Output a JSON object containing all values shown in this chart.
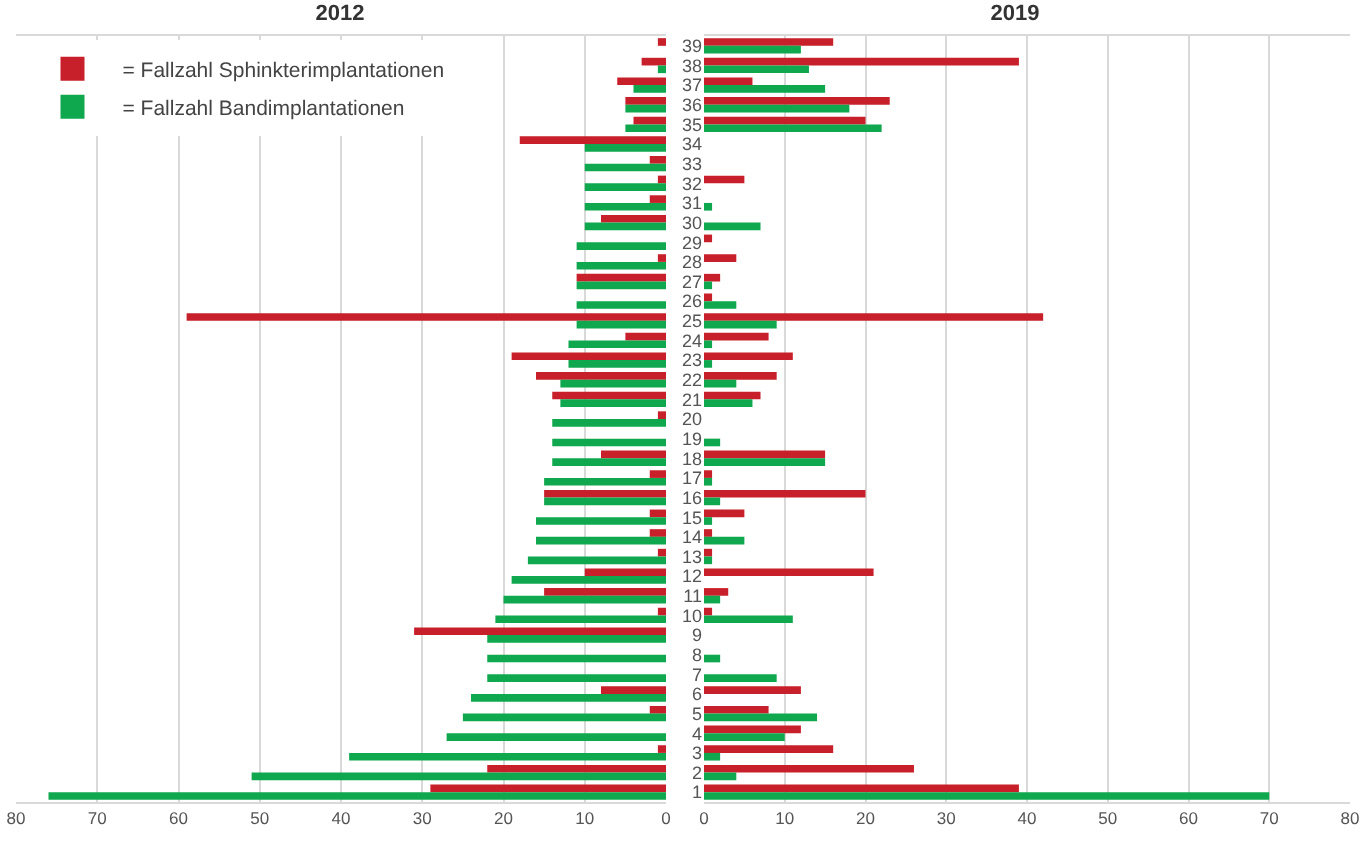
{
  "chart_data": [
    {
      "type": "bar",
      "title": "2012",
      "orientation": "horizontal",
      "categories": [
        "39",
        "38",
        "37",
        "36",
        "35",
        "34",
        "33",
        "32",
        "31",
        "30",
        "29",
        "28",
        "27",
        "26",
        "25",
        "24",
        "23",
        "22",
        "21",
        "20",
        "19",
        "18",
        "17",
        "16",
        "15",
        "14",
        "13",
        "12",
        "11",
        "10",
        "9",
        "8",
        "7",
        "6",
        "5",
        "4",
        "3",
        "2",
        "1"
      ],
      "series": [
        {
          "name": "= Fallzahl Sphinkterimplantationen",
          "color": "#c8202a",
          "values": [
            1,
            3,
            6,
            5,
            4,
            18,
            2,
            1,
            2,
            8,
            0,
            1,
            11,
            0,
            59,
            5,
            19,
            16,
            14,
            1,
            0,
            8,
            2,
            15,
            2,
            2,
            1,
            10,
            15,
            1,
            31,
            0,
            0,
            8,
            2,
            0,
            1,
            22,
            29
          ]
        },
        {
          "name": "= Fallzahl Bandimplantationen",
          "color": "#10a84f",
          "values": [
            0,
            1,
            4,
            5,
            5,
            10,
            10,
            10,
            10,
            10,
            11,
            11,
            11,
            11,
            11,
            12,
            12,
            13,
            13,
            14,
            14,
            14,
            15,
            15,
            16,
            16,
            17,
            19,
            20,
            21,
            22,
            22,
            22,
            24,
            25,
            27,
            39,
            51,
            76
          ]
        }
      ],
      "xlim": [
        80,
        0
      ],
      "xticks": [
        0,
        10,
        20,
        30,
        40,
        50,
        60,
        70,
        80
      ],
      "grid": "x",
      "legend": "top left",
      "tick_labels": "x"
    },
    {
      "type": "bar",
      "title": "2019",
      "orientation": "horizontal",
      "categories": [
        "39",
        "38",
        "37",
        "36",
        "35",
        "34",
        "33",
        "32",
        "31",
        "30",
        "29",
        "28",
        "27",
        "26",
        "25",
        "24",
        "23",
        "22",
        "21",
        "20",
        "19",
        "18",
        "17",
        "16",
        "15",
        "14",
        "13",
        "12",
        "11",
        "10",
        "9",
        "8",
        "7",
        "6",
        "5",
        "4",
        "3",
        "2",
        "1"
      ],
      "series": [
        {
          "color": "#c8202a",
          "values": [
            16,
            39,
            6,
            23,
            20,
            0,
            0,
            5,
            0,
            0,
            1,
            4,
            2,
            1,
            42,
            8,
            11,
            9,
            7,
            0,
            0,
            15,
            1,
            20,
            5,
            1,
            1,
            21,
            3,
            1,
            0,
            0,
            0,
            12,
            8,
            12,
            16,
            26,
            39
          ]
        },
        {
          "color": "#10a84f",
          "values": [
            12,
            13,
            15,
            18,
            22,
            0,
            0,
            0,
            1,
            7,
            0,
            0,
            1,
            4,
            9,
            1,
            1,
            4,
            6,
            0,
            2,
            15,
            1,
            2,
            1,
            5,
            1,
            0,
            2,
            11,
            0,
            2,
            9,
            0,
            14,
            10,
            2,
            4,
            70
          ]
        }
      ],
      "xlim": [
        0,
        80
      ],
      "xticks": [
        0,
        10,
        20,
        30,
        40,
        50,
        60,
        70,
        80
      ],
      "grid": "x",
      "legend": false
    }
  ]
}
